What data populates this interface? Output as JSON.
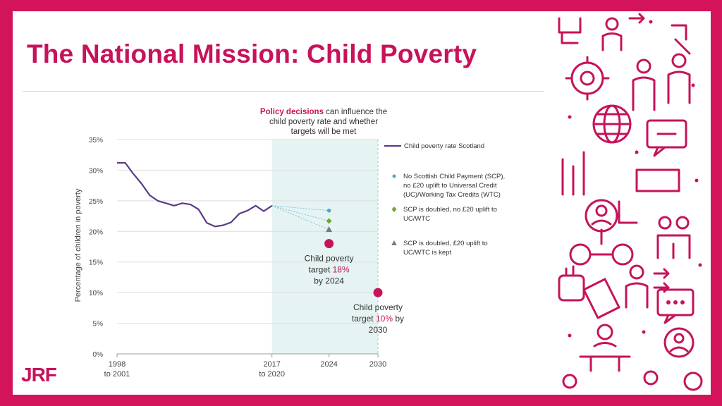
{
  "slide": {
    "title": "The National Mission: Child Poverty",
    "logo": "JRF"
  },
  "colors": {
    "brand": "#c6135a",
    "line": "#5a3b86",
    "shade": "#e6f3f3",
    "dot_no_scp": "#4aa8d0",
    "dot_doubled_no_uplift": "#6fa82f",
    "dot_doubled_uplift_kept": "#6d7c8c"
  },
  "chart_data": {
    "type": "line",
    "title": "",
    "annotation": {
      "bold": "Policy decisions",
      "rest_line1": " can influence the",
      "line2": "child poverty rate and whether",
      "line3": "targets will be met"
    },
    "ylabel": "Percentage of children in poverty",
    "ylim": [
      0,
      35
    ],
    "yticks": [
      "0%",
      "5%",
      "10%",
      "15%",
      "20%",
      "25%",
      "30%",
      "35%"
    ],
    "x_labels": [
      {
        "line1": "1998",
        "line2": "to 2001",
        "x": 1998
      },
      {
        "line1": "2017",
        "line2": "to 2020",
        "x": 2017
      },
      {
        "line1": "2024",
        "line2": "",
        "x": 2024
      },
      {
        "line1": "2030",
        "line2": "",
        "x": 2030
      }
    ],
    "projection_start": 2017,
    "series": [
      {
        "name": "Child poverty rate Scotland",
        "x": [
          1998,
          1999,
          2000,
          2001,
          2002,
          2003,
          2004,
          2005,
          2006,
          2007,
          2008,
          2009,
          2010,
          2011,
          2012,
          2013,
          2014,
          2015,
          2016,
          2017
        ],
        "values": [
          31.2,
          31.2,
          29.4,
          27.8,
          25.9,
          25,
          24.6,
          24.2,
          24.6,
          24.4,
          23.6,
          21.4,
          20.8,
          21,
          21.5,
          22.9,
          23.4,
          24.2,
          23.3,
          24.2
        ]
      }
    ],
    "projections": [
      {
        "name": "No Scottish Child Payment (SCP), no £20 uplift to Universal Credit (UC)/Working Tax Credits (WTC)",
        "x": 2024,
        "value": 23.4,
        "marker": "circle"
      },
      {
        "name": "SCP is doubled, no £20 uplift to UC/WTC",
        "x": 2024,
        "value": 21.7,
        "marker": "diamond"
      },
      {
        "name": "SCP is doubled, £20 uplift to UC/WTC is kept",
        "x": 2024,
        "value": 20.3,
        "marker": "triangle"
      }
    ],
    "targets": [
      {
        "x": 2024,
        "value": 18,
        "line1": "Child poverty",
        "pre": "target ",
        "highlight": "18%",
        "post": "",
        "line3": "by 2024"
      },
      {
        "x": 2030,
        "value": 10,
        "line1": "Child poverty",
        "pre": "target ",
        "highlight": "10%",
        "post": " by",
        "line3": "2030"
      }
    ],
    "legend": [
      {
        "label": "Child poverty rate Scotland",
        "marker": "line"
      },
      {
        "lines": [
          "No Scottish Child Payment (SCP),",
          "no £20 uplift to Universal Credit",
          "(UC)/Working Tax Credits (WTC)"
        ],
        "marker": "circle"
      },
      {
        "lines": [
          "SCP is doubled, no £20 uplift to",
          "UC/WTC"
        ],
        "marker": "diamond"
      },
      {
        "lines": [
          "SCP is doubled, £20 uplift to",
          "UC/WTC is kept"
        ],
        "marker": "triangle"
      }
    ]
  }
}
